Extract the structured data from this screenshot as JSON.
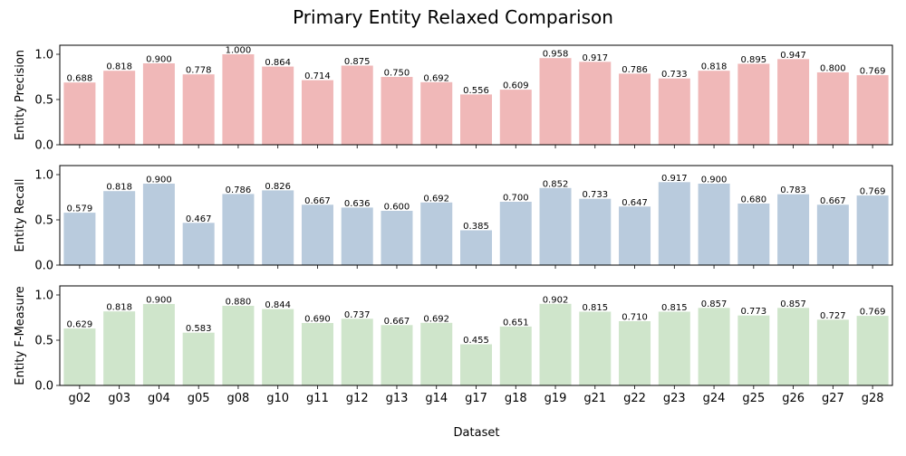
{
  "figure": {
    "title": "Primary Entity Relaxed Comparison",
    "xlabel": "Dataset"
  },
  "chart_data": {
    "type": "bar",
    "categories": [
      "g02",
      "g03",
      "g04",
      "g05",
      "g08",
      "g10",
      "g11",
      "g12",
      "g13",
      "g14",
      "g17",
      "g18",
      "g19",
      "g21",
      "g22",
      "g23",
      "g24",
      "g25",
      "g26",
      "g27",
      "g28"
    ],
    "panels": [
      {
        "ylabel": "Entity Precision",
        "color": "#f0b8b8",
        "ylim": [
          0,
          1.1
        ],
        "yticks": [
          "0.0",
          "0.5",
          "1.0"
        ],
        "values": [
          0.688,
          0.818,
          0.9,
          0.778,
          1.0,
          0.864,
          0.714,
          0.875,
          0.75,
          0.692,
          0.556,
          0.609,
          0.958,
          0.917,
          0.786,
          0.733,
          0.818,
          0.895,
          0.947,
          0.8,
          0.769
        ],
        "labels": [
          "0.688",
          "0.818",
          "0.900",
          "0.778",
          "1.000",
          "0.864",
          "0.714",
          "0.875",
          "0.750",
          "0.692",
          "0.556",
          "0.609",
          "0.958",
          "0.917",
          "0.786",
          "0.733",
          "0.818",
          "0.895",
          "0.947",
          "0.800",
          "0.769"
        ]
      },
      {
        "ylabel": "Entity Recall",
        "color": "#b9cbdd",
        "ylim": [
          0,
          1.1
        ],
        "yticks": [
          "0.0",
          "0.5",
          "1.0"
        ],
        "values": [
          0.579,
          0.818,
          0.9,
          0.467,
          0.786,
          0.826,
          0.667,
          0.636,
          0.6,
          0.692,
          0.385,
          0.7,
          0.852,
          0.733,
          0.647,
          0.917,
          0.9,
          0.68,
          0.783,
          0.667,
          0.769
        ],
        "labels": [
          "0.579",
          "0.818",
          "0.900",
          "0.467",
          "0.786",
          "0.826",
          "0.667",
          "0.636",
          "0.600",
          "0.692",
          "0.385",
          "0.700",
          "0.852",
          "0.733",
          "0.647",
          "0.917",
          "0.900",
          "0.680",
          "0.783",
          "0.667",
          "0.769"
        ]
      },
      {
        "ylabel": "Entity F-Measure",
        "color": "#cfe5cb",
        "ylim": [
          0,
          1.1
        ],
        "yticks": [
          "0.0",
          "0.5",
          "1.0"
        ],
        "values": [
          0.629,
          0.818,
          0.9,
          0.583,
          0.88,
          0.844,
          0.69,
          0.737,
          0.667,
          0.692,
          0.455,
          0.651,
          0.902,
          0.815,
          0.71,
          0.815,
          0.857,
          0.773,
          0.857,
          0.727,
          0.769
        ],
        "labels": [
          "0.629",
          "0.818",
          "0.900",
          "0.583",
          "0.880",
          "0.844",
          "0.690",
          "0.737",
          "0.667",
          "0.692",
          "0.455",
          "0.651",
          "0.902",
          "0.815",
          "0.710",
          "0.815",
          "0.857",
          "0.773",
          "0.857",
          "0.727",
          "0.769"
        ]
      }
    ],
    "grid": false,
    "legend": "none"
  }
}
